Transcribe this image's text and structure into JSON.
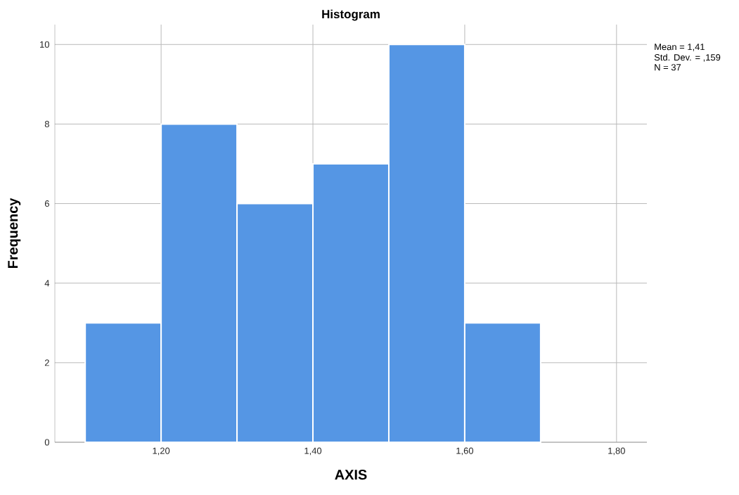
{
  "chart_data": {
    "type": "histogram",
    "title": "Histogram",
    "xlabel": "AXIS",
    "ylabel": "Frequency",
    "bins": [
      1.1,
      1.2,
      1.3,
      1.4,
      1.5,
      1.6,
      1.7
    ],
    "values": [
      3,
      8,
      6,
      7,
      10,
      3
    ],
    "color": "#5596e4",
    "xlim": [
      1.06,
      1.84
    ],
    "ylim": [
      0,
      10.5
    ],
    "xticks": [
      {
        "value": 1.2,
        "label": "1,20"
      },
      {
        "value": 1.4,
        "label": "1,40"
      },
      {
        "value": 1.6,
        "label": "1,60"
      },
      {
        "value": 1.8,
        "label": "1,80"
      }
    ],
    "yticks": [
      0,
      2,
      4,
      6,
      8,
      10
    ],
    "grid": true,
    "annotations": [
      "Mean = 1,41",
      "Std. Dev. = ,159",
      "N = 37"
    ]
  }
}
